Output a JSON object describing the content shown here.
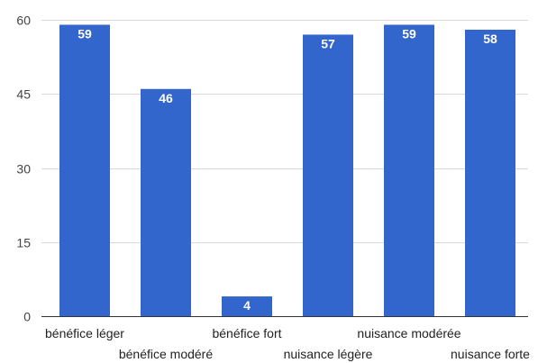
{
  "chart_data": {
    "type": "bar",
    "categories": [
      "bénéfice léger",
      "bénéfice modéré",
      "bénéfice fort",
      "nuisance légère",
      "nuisance modérée",
      "nuisance forte"
    ],
    "values": [
      59,
      46,
      4,
      57,
      59,
      58
    ],
    "title": "",
    "xlabel": "",
    "ylabel": "",
    "ylim": [
      0,
      60
    ],
    "yticks": [
      0,
      15,
      30,
      45,
      60
    ],
    "grid": true,
    "legend": "none",
    "bar_color": "#3366cc",
    "data_label_color": "#ffffff"
  }
}
